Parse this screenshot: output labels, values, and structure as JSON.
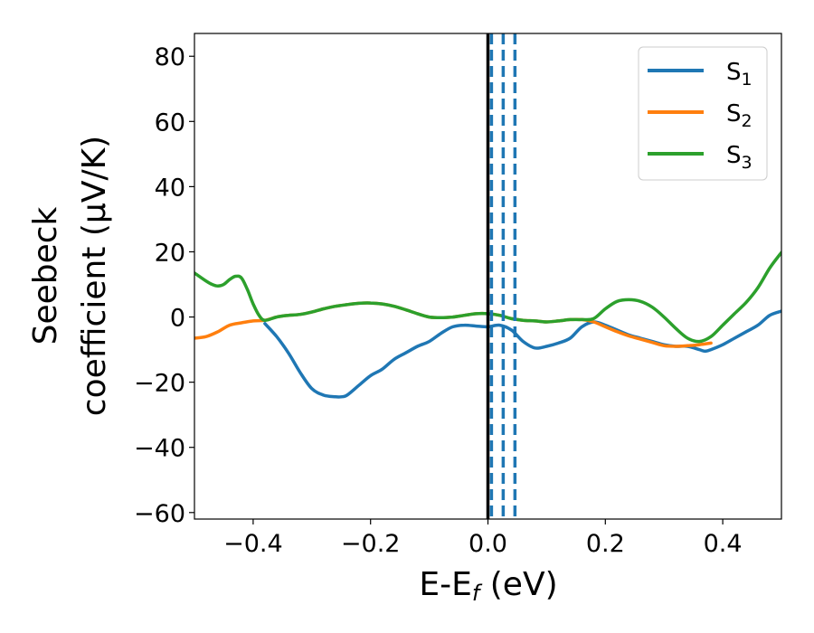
{
  "chart_data": {
    "type": "line",
    "xlabel": "E-E",
    "xlabel_sub": "f",
    "xlabel_unit": " (eV)",
    "ylabel_line1": "Seebeck",
    "ylabel_line2": "coefficient  (μV/K)",
    "xlim": [
      -0.5,
      0.5
    ],
    "ylim": [
      -62,
      87
    ],
    "xticks": [
      -0.4,
      -0.2,
      0.0,
      0.2,
      0.4
    ],
    "xtick_labels": [
      "−0.4",
      "−0.2",
      "0.0",
      "0.2",
      "0.4"
    ],
    "yticks": [
      -60,
      -40,
      -20,
      0,
      20,
      40,
      60,
      80
    ],
    "ytick_labels": [
      "−60",
      "−40",
      "−20",
      "0",
      "20",
      "40",
      "60",
      "80"
    ],
    "grid": false,
    "legend_position": "top-right",
    "series": [
      {
        "name": "S",
        "name_sub": "1",
        "color": "#1f77b4",
        "x": [
          -0.38,
          -0.36,
          -0.34,
          -0.32,
          -0.3,
          -0.28,
          -0.26,
          -0.25,
          -0.24,
          -0.22,
          -0.2,
          -0.18,
          -0.16,
          -0.14,
          -0.12,
          -0.1,
          -0.08,
          -0.06,
          -0.04,
          -0.02,
          0.0,
          0.02,
          0.04,
          0.06,
          0.08,
          0.1,
          0.12,
          0.14,
          0.16,
          0.18,
          0.2,
          0.22,
          0.24,
          0.26,
          0.28,
          0.3,
          0.32,
          0.34,
          0.36,
          0.37,
          0.38,
          0.4,
          0.42,
          0.44,
          0.46,
          0.48,
          0.5
        ],
        "y": [
          -2,
          -6,
          -11,
          -17,
          -22,
          -24,
          -24.5,
          -24.5,
          -24,
          -21,
          -18,
          -16,
          -13,
          -11,
          -9,
          -7.5,
          -5,
          -3,
          -2.5,
          -2.8,
          -3,
          -2.5,
          -4,
          -7.5,
          -9.5,
          -9,
          -8,
          -6.5,
          -3,
          -1.5,
          -2.5,
          -4,
          -5.5,
          -6.5,
          -7.5,
          -8.5,
          -9,
          -9,
          -10,
          -10.5,
          -10,
          -8.5,
          -6.5,
          -4.5,
          -2.5,
          0.5,
          1.8
        ]
      },
      {
        "name": "S",
        "name_sub": "2",
        "color": "#ff7f0e",
        "x": [
          -0.5,
          -0.48,
          -0.46,
          -0.44,
          -0.42,
          -0.4,
          -0.38,
          -0.36,
          -0.34,
          -0.32,
          -0.3,
          -0.28,
          -0.26,
          -0.24,
          -0.22,
          -0.2,
          -0.18,
          -0.16,
          -0.14,
          -0.12,
          -0.1,
          -0.08,
          -0.06,
          -0.04,
          -0.02,
          0.0,
          0.02,
          0.04,
          0.06,
          0.08,
          0.1,
          0.12,
          0.14,
          0.16,
          0.18,
          0.2,
          0.22,
          0.24,
          0.26,
          0.28,
          0.3,
          0.32,
          0.34,
          0.36,
          0.38
        ],
        "y": [
          -6.5,
          -6,
          -4.5,
          -2.5,
          -1.8,
          -1.2,
          -1,
          0,
          0.5,
          0.8,
          1.5,
          2.5,
          3.3,
          3.8,
          4.2,
          4.3,
          4,
          3.3,
          2.2,
          1,
          0,
          -0.2,
          0,
          0.5,
          1,
          1,
          0.5,
          -0.5,
          -1,
          -1.2,
          -1.5,
          -1.2,
          -0.8,
          -0.8,
          -1.5,
          -3,
          -4.5,
          -5.8,
          -6.8,
          -7.8,
          -8.8,
          -9,
          -8.8,
          -8.5,
          -8
        ]
      },
      {
        "name": "S",
        "name_sub": "3",
        "color": "#2ca02c",
        "x": [
          -0.5,
          -0.48,
          -0.47,
          -0.46,
          -0.45,
          -0.44,
          -0.43,
          -0.42,
          -0.41,
          -0.4,
          -0.39,
          -0.38,
          -0.36,
          -0.34,
          -0.32,
          -0.3,
          -0.28,
          -0.26,
          -0.24,
          -0.22,
          -0.2,
          -0.18,
          -0.16,
          -0.14,
          -0.12,
          -0.1,
          -0.08,
          -0.06,
          -0.04,
          -0.02,
          0.0,
          0.02,
          0.04,
          0.06,
          0.08,
          0.1,
          0.12,
          0.14,
          0.16,
          0.18,
          0.2,
          0.22,
          0.24,
          0.26,
          0.28,
          0.3,
          0.32,
          0.34,
          0.36,
          0.38,
          0.4,
          0.42,
          0.44,
          0.46,
          0.48,
          0.5
        ],
        "y": [
          13.5,
          11,
          10,
          9.5,
          10,
          11.5,
          12.5,
          12,
          8.5,
          4,
          0.5,
          -1,
          0,
          0.5,
          0.8,
          1.5,
          2.5,
          3.3,
          3.8,
          4.2,
          4.3,
          4,
          3.3,
          2.2,
          1,
          0,
          -0.2,
          0,
          0.5,
          1,
          1,
          0.5,
          -0.5,
          -1,
          -1.2,
          -1.5,
          -1.2,
          -0.8,
          -0.8,
          -0.5,
          2.5,
          4.8,
          5.3,
          4.8,
          3,
          0,
          -3.5,
          -6.5,
          -7.5,
          -6,
          -2.5,
          1,
          4.5,
          9,
          15,
          19.8
        ]
      }
    ],
    "vlines": [
      {
        "x": 0.0,
        "color": "#000000",
        "style": "solid"
      },
      {
        "x": 0.006,
        "color": "#1f77b4",
        "style": "dashed"
      },
      {
        "x": 0.026,
        "color": "#1f77b4",
        "style": "dashed"
      },
      {
        "x": 0.046,
        "color": "#1f77b4",
        "style": "dashed"
      }
    ]
  }
}
